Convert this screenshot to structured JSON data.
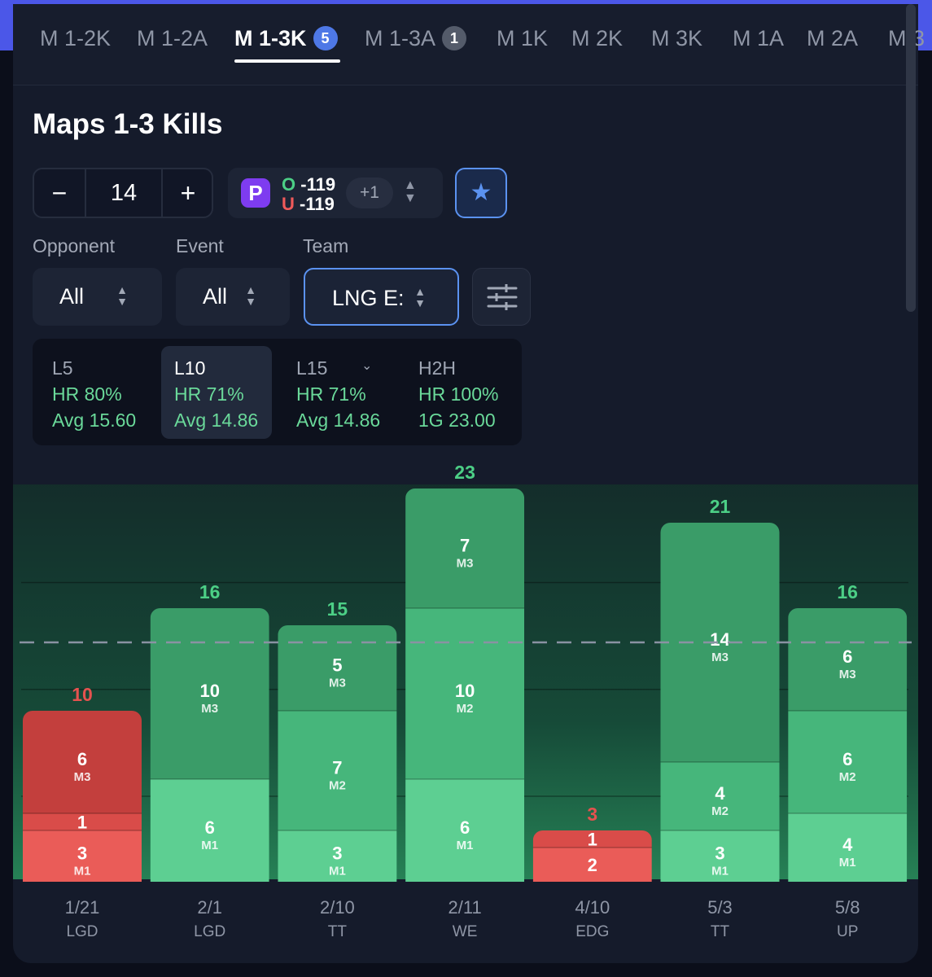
{
  "tabs": [
    {
      "label": "M 1-2K",
      "badge": ""
    },
    {
      "label": "M 1-2A",
      "badge": ""
    },
    {
      "label": "M 1-3K",
      "badge": "5",
      "active": true
    },
    {
      "label": "M 1-3A",
      "badge": "1"
    },
    {
      "label": "M 1K",
      "badge": ""
    },
    {
      "label": "M 2K",
      "badge": ""
    },
    {
      "label": "M 3K",
      "badge": ""
    },
    {
      "label": "M 1A",
      "badge": ""
    },
    {
      "label": "M 2A",
      "badge": ""
    },
    {
      "label": "M 3",
      "badge": ""
    }
  ],
  "title": "Maps 1-3 Kills",
  "line": {
    "minus": "−",
    "value": "14",
    "plus": "+"
  },
  "odds": {
    "book_icon": "prizepicks-p-logo",
    "over_label": "O",
    "over_value": "-119",
    "under_label": "U",
    "under_value": "-119",
    "more": "+1"
  },
  "filters": {
    "opponent_label": "Opponent",
    "opponent_value": "All",
    "event_label": "Event",
    "event_value": "All",
    "team_label": "Team",
    "team_value": "LNG E:"
  },
  "stats": [
    {
      "head": "L5",
      "hr": "HR 80%",
      "avg": "Avg 15.60"
    },
    {
      "head": "L10",
      "hr": "HR 71%",
      "avg": "Avg 14.86",
      "active": true
    },
    {
      "head": "L15",
      "hr": "HR 71%",
      "avg": "Avg 14.86"
    },
    {
      "head": "H2H",
      "hr": "HR 100%",
      "avg": "1G 23.00"
    }
  ],
  "colors": {
    "over": "#4ccf86",
    "under": "#e5524f",
    "accent": "#5b92f0"
  },
  "chart_data": {
    "type": "bar",
    "stacked": true,
    "line": 14,
    "categories": [
      {
        "date": "1/21",
        "team": "LGD"
      },
      {
        "date": "2/1",
        "team": "LGD"
      },
      {
        "date": "2/10",
        "team": "TT"
      },
      {
        "date": "2/11",
        "team": "WE"
      },
      {
        "date": "4/10",
        "team": "EDG"
      },
      {
        "date": "5/3",
        "team": "TT"
      },
      {
        "date": "5/8",
        "team": "UP"
      }
    ],
    "totals": [
      10,
      16,
      15,
      23,
      3,
      21,
      16
    ],
    "series": [
      {
        "name": "M1",
        "values": [
          3,
          6,
          3,
          6,
          2,
          3,
          4
        ]
      },
      {
        "name": "M2",
        "values": [
          1,
          0,
          7,
          10,
          1,
          4,
          6
        ]
      },
      {
        "name": "M3",
        "values": [
          6,
          10,
          5,
          7,
          0,
          14,
          6
        ]
      }
    ],
    "segment_labels": [
      [
        {
          "v": "3",
          "m": "M1"
        },
        {
          "v": "1",
          "m": ""
        },
        {
          "v": "6",
          "m": "M3"
        }
      ],
      [
        {
          "v": "6",
          "m": "M1"
        },
        null,
        {
          "v": "10",
          "m": "M3"
        }
      ],
      [
        {
          "v": "3",
          "m": "M1"
        },
        {
          "v": "7",
          "m": "M2"
        },
        {
          "v": "5",
          "m": "M3"
        }
      ],
      [
        {
          "v": "6",
          "m": "M1"
        },
        {
          "v": "10",
          "m": "M2"
        },
        {
          "v": "7",
          "m": "M3"
        }
      ],
      [
        {
          "v": "2",
          "m": ""
        },
        {
          "v": "1",
          "m": ""
        },
        null
      ],
      [
        {
          "v": "3",
          "m": "M1"
        },
        {
          "v": "4",
          "m": "M2"
        },
        {
          "v": "14",
          "m": "M3"
        }
      ],
      [
        {
          "v": "4",
          "m": "M1"
        },
        {
          "v": "6",
          "m": "M2"
        },
        {
          "v": "6",
          "m": "M3"
        }
      ]
    ],
    "ylim": [
      0,
      25
    ]
  }
}
